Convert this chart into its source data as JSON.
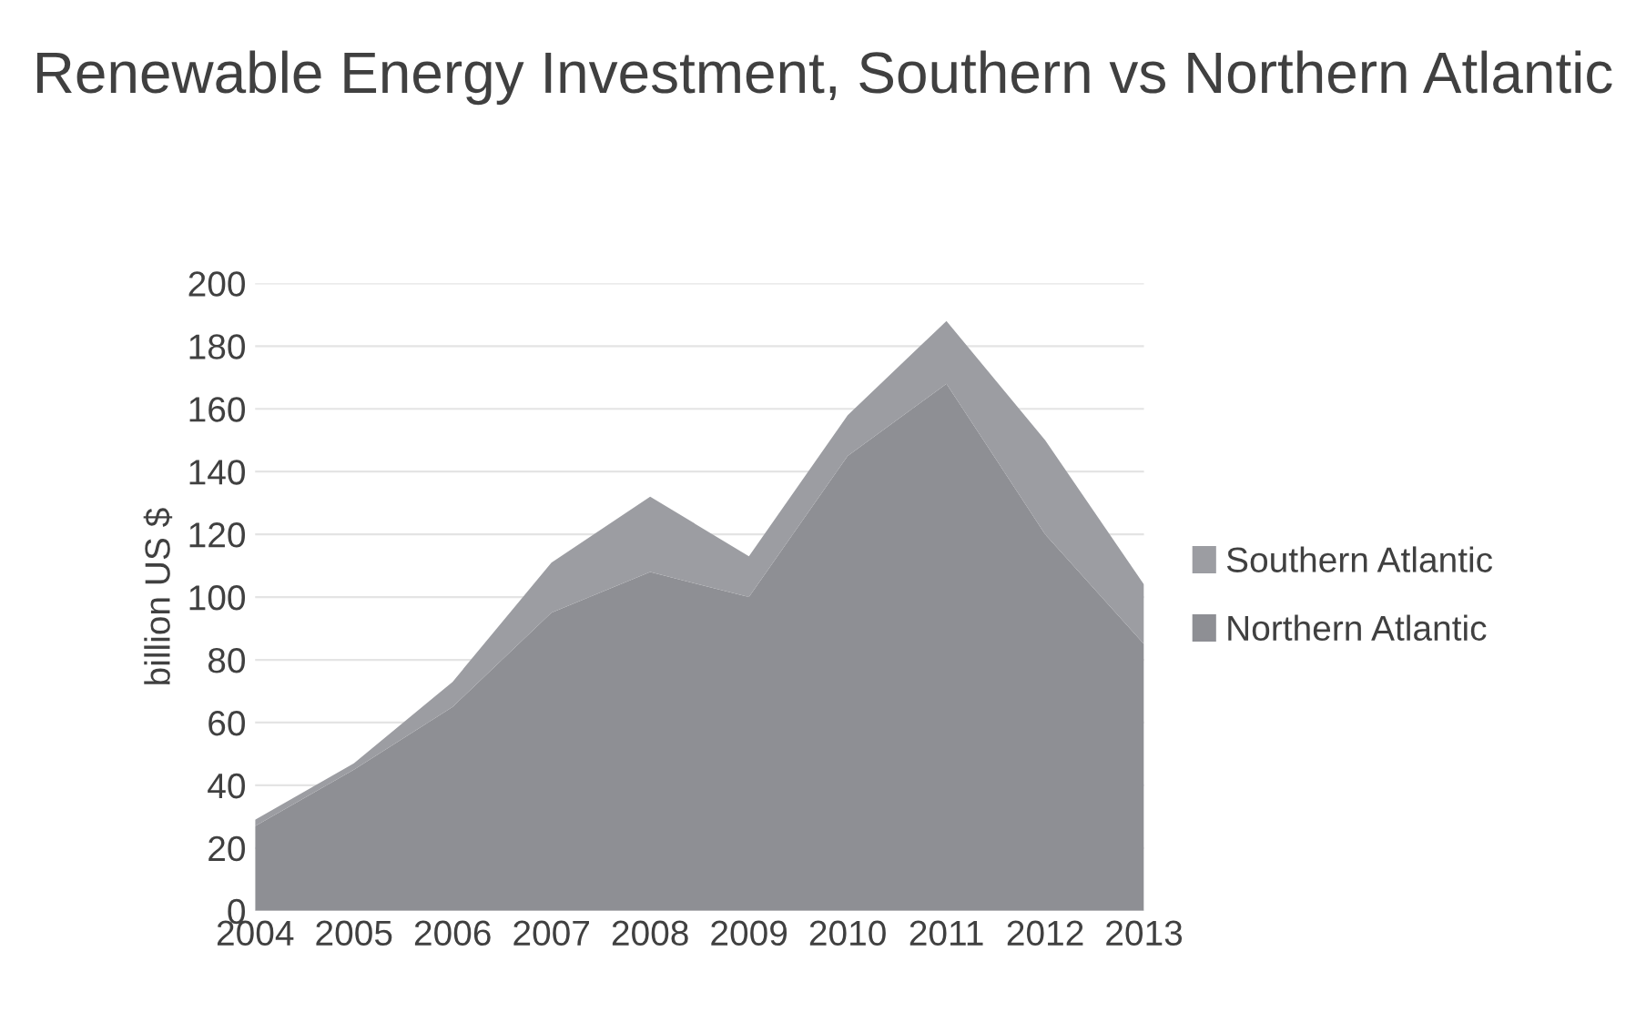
{
  "chart_data": {
    "type": "area",
    "stacked": true,
    "title": "Renewable Energy Investment, Southern vs Northern Atlantic",
    "ylabel": "billion US $",
    "categories": [
      "2004",
      "2005",
      "2006",
      "2007",
      "2008",
      "2009",
      "2010",
      "2011",
      "2012",
      "2013"
    ],
    "series": [
      {
        "name": "Northern Atlantic",
        "color": "#8e8f94",
        "values": [
          27,
          45,
          65,
          95,
          108,
          100,
          145,
          168,
          120,
          85
        ]
      },
      {
        "name": "Southern Atlantic",
        "color": "#9c9da2",
        "values": [
          2,
          2,
          8,
          16,
          24,
          13,
          13,
          20,
          30,
          19
        ]
      }
    ],
    "ylim": [
      0,
      200
    ],
    "yticks": [
      0,
      20,
      40,
      60,
      80,
      100,
      120,
      140,
      160,
      180,
      200
    ],
    "grid": "y",
    "legend": "right"
  }
}
